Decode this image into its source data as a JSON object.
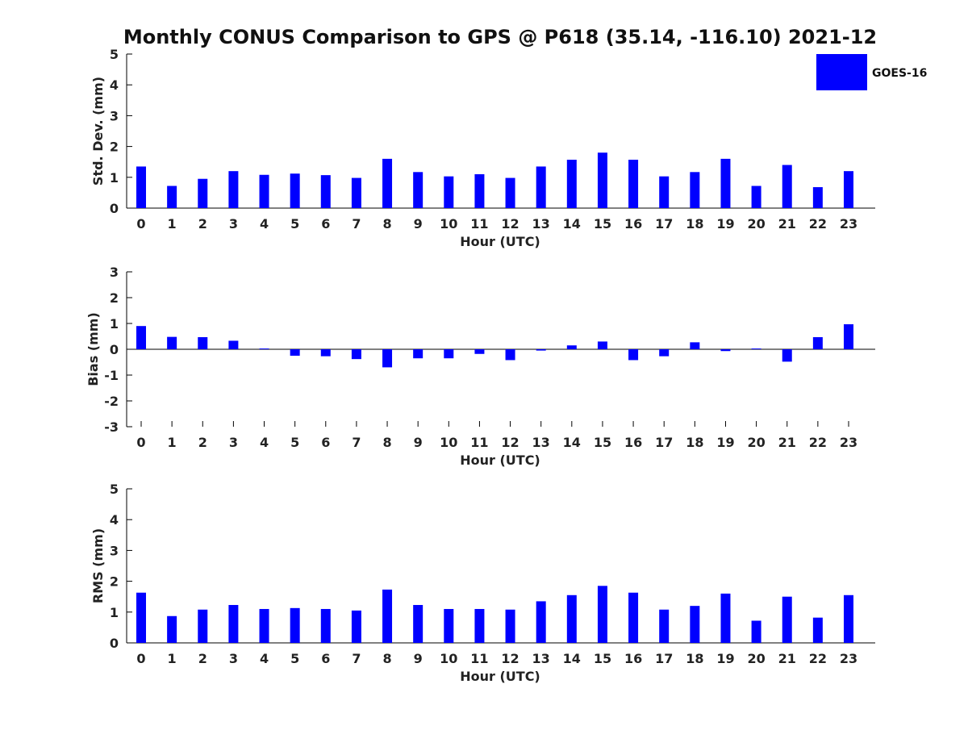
{
  "title": "Monthly CONUS Comparison to GPS @ P618 (35.14, -116.10) 2021-12",
  "legend": {
    "label": "GOES-16",
    "color": "#0000ff",
    "placement": "top-right"
  },
  "chart_data": [
    {
      "type": "bar",
      "xlabel": "Hour (UTC)",
      "ylabel": "Std. Dev. (mm)",
      "ylim": [
        0,
        5
      ],
      "yticks": [
        0,
        1,
        2,
        3,
        4,
        5
      ],
      "categories": [
        "0",
        "1",
        "2",
        "3",
        "4",
        "5",
        "6",
        "7",
        "8",
        "9",
        "10",
        "11",
        "12",
        "13",
        "14",
        "15",
        "16",
        "17",
        "18",
        "19",
        "20",
        "21",
        "22",
        "23"
      ],
      "series": [
        {
          "name": "GOES-16",
          "values": [
            1.35,
            0.72,
            0.95,
            1.2,
            1.08,
            1.12,
            1.07,
            0.98,
            1.6,
            1.17,
            1.03,
            1.1,
            0.98,
            1.35,
            1.57,
            1.8,
            1.57,
            1.03,
            1.17,
            1.6,
            0.72,
            1.4,
            0.68,
            1.2
          ]
        }
      ]
    },
    {
      "type": "bar",
      "xlabel": "Hour (UTC)",
      "ylabel": "Bias (mm)",
      "ylim": [
        -3,
        3
      ],
      "yticks": [
        -3,
        -2,
        -1,
        0,
        1,
        2,
        3
      ],
      "categories": [
        "0",
        "1",
        "2",
        "3",
        "4",
        "5",
        "6",
        "7",
        "8",
        "9",
        "10",
        "11",
        "12",
        "13",
        "14",
        "15",
        "16",
        "17",
        "18",
        "19",
        "20",
        "21",
        "22",
        "23"
      ],
      "series": [
        {
          "name": "GOES-16",
          "values": [
            0.9,
            0.48,
            0.47,
            0.33,
            0.03,
            -0.25,
            -0.27,
            -0.38,
            -0.7,
            -0.35,
            -0.35,
            -0.18,
            -0.42,
            -0.05,
            0.15,
            0.3,
            -0.42,
            -0.27,
            0.27,
            -0.07,
            0.03,
            -0.48,
            0.47,
            0.97
          ]
        }
      ]
    },
    {
      "type": "bar",
      "xlabel": "Hour (UTC)",
      "ylabel": "RMS (mm)",
      "ylim": [
        0,
        5
      ],
      "yticks": [
        0,
        1,
        2,
        3,
        4,
        5
      ],
      "categories": [
        "0",
        "1",
        "2",
        "3",
        "4",
        "5",
        "6",
        "7",
        "8",
        "9",
        "10",
        "11",
        "12",
        "13",
        "14",
        "15",
        "16",
        "17",
        "18",
        "19",
        "20",
        "21",
        "22",
        "23"
      ],
      "series": [
        {
          "name": "GOES-16",
          "values": [
            1.63,
            0.87,
            1.08,
            1.23,
            1.1,
            1.13,
            1.1,
            1.05,
            1.73,
            1.23,
            1.1,
            1.1,
            1.08,
            1.35,
            1.55,
            1.85,
            1.63,
            1.08,
            1.2,
            1.6,
            0.72,
            1.5,
            0.82,
            1.55
          ]
        }
      ]
    }
  ]
}
